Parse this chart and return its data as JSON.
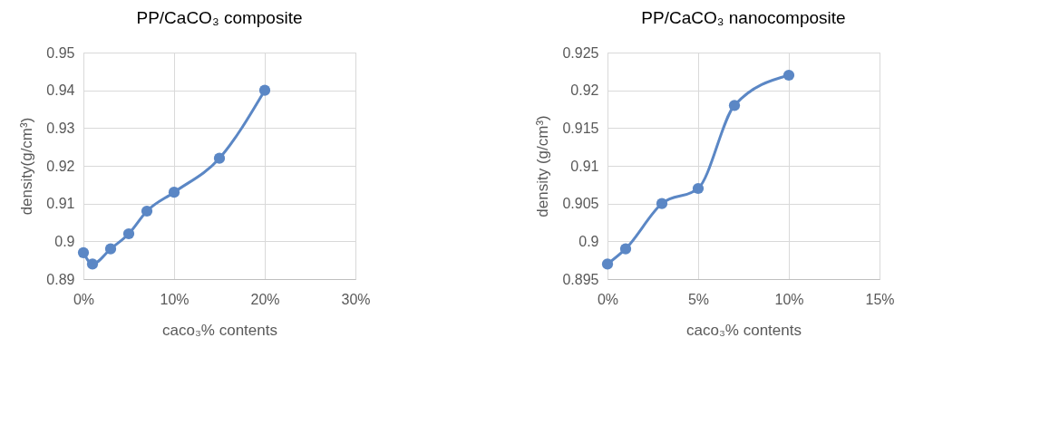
{
  "chart_data": [
    {
      "type": "line",
      "title": "PP/CaCO₃ composite",
      "xlabel": "caco₃% contents",
      "ylabel": "density(g/cm³)",
      "x": [
        0,
        1,
        3,
        5,
        7,
        10,
        15,
        20
      ],
      "series": [
        {
          "color": "#5b87c5",
          "values": [
            0.897,
            0.894,
            0.898,
            0.902,
            0.908,
            0.913,
            0.922,
            0.94
          ]
        }
      ],
      "xlim": [
        0,
        30
      ],
      "xticks": [
        {
          "value": 0,
          "label": "0%"
        },
        {
          "value": 10,
          "label": "10%"
        },
        {
          "value": 20,
          "label": "20%"
        },
        {
          "value": 30,
          "label": "30%"
        }
      ],
      "ylim": [
        0.89,
        0.95
      ],
      "yticks": [
        0.89,
        0.9,
        0.91,
        0.92,
        0.93,
        0.94,
        0.95
      ],
      "grid": true,
      "marker": "circle",
      "line_style": "solid"
    },
    {
      "type": "line",
      "title": "PP/CaCO₃ nanocomposite",
      "xlabel": "caco₃% contents",
      "ylabel": "density (g/cm³)",
      "x": [
        0,
        1,
        3,
        5,
        7,
        10
      ],
      "series": [
        {
          "color": "#5b87c5",
          "values": [
            0.897,
            0.899,
            0.905,
            0.907,
            0.918,
            0.922
          ]
        }
      ],
      "xlim": [
        0,
        15
      ],
      "xticks": [
        {
          "value": 0,
          "label": "0%"
        },
        {
          "value": 5,
          "label": "5%"
        },
        {
          "value": 10,
          "label": "10%"
        },
        {
          "value": 15,
          "label": "15%"
        }
      ],
      "ylim": [
        0.895,
        0.925
      ],
      "yticks": [
        0.895,
        0.9,
        0.905,
        0.91,
        0.915,
        0.92,
        0.925
      ],
      "grid": true,
      "marker": "circle",
      "line_style": "solid"
    }
  ]
}
